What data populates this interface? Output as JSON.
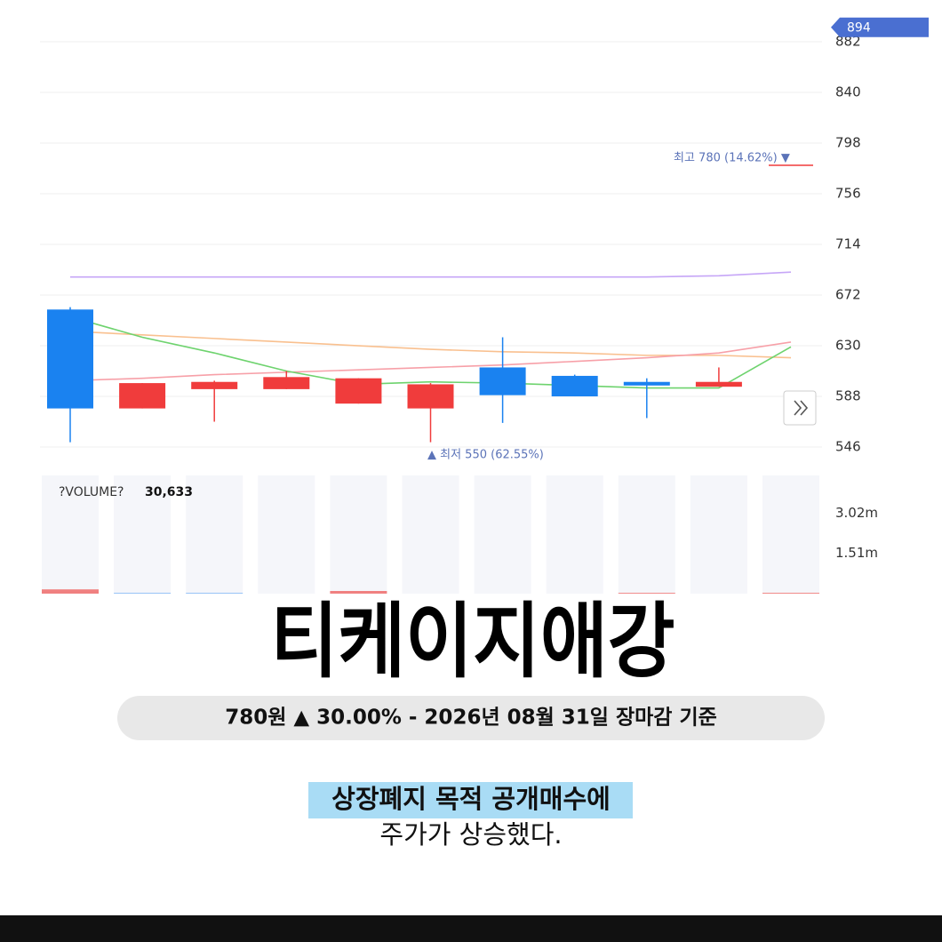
{
  "chart_data": {
    "type": "candlestick",
    "categories": [
      null,
      null,
      null,
      null,
      null,
      null,
      null,
      null,
      null,
      null,
      null
    ],
    "open": [
      660,
      578,
      594,
      594,
      582,
      578,
      612,
      605,
      600,
      596,
      null
    ],
    "high": [
      662,
      599,
      601,
      609,
      603,
      599,
      637,
      606,
      603,
      612,
      null
    ],
    "low": [
      550,
      578,
      567,
      594,
      582,
      550,
      566,
      588,
      570,
      596,
      null
    ],
    "close": [
      578,
      599,
      600,
      604,
      603,
      598,
      589,
      588,
      597,
      600,
      null
    ],
    "up_color": "#f03c3c",
    "down_color": "#1a82f0",
    "series": [
      {
        "color": "#c6a6f7",
        "values": [
          687,
          687,
          687,
          687,
          687,
          687,
          687,
          687,
          687,
          688,
          691
        ]
      },
      {
        "color": "#f9c08f",
        "values": [
          642,
          639,
          636,
          633,
          630,
          627,
          625,
          624,
          622,
          622,
          620
        ]
      },
      {
        "color": "#f7a0a8",
        "values": [
          601,
          603,
          606,
          608,
          610,
          612,
          614,
          617,
          620,
          624,
          633
        ]
      },
      {
        "color": "#6ed36e",
        "values": [
          654,
          637,
          624,
          609,
          598,
          600,
          599,
          597,
          595,
          595,
          629
        ]
      }
    ],
    "ylim": [
      536,
      894
    ],
    "yticks": [
      546,
      588,
      630,
      672,
      714,
      756,
      798,
      840,
      882
    ],
    "grid": true,
    "current_price": 894,
    "high_annotation": "최고 780 (14.62%) ▼",
    "low_annotation": "▲ 최저 550 (62.55%)",
    "volume": {
      "title": "?VOLUME?",
      "current": "30,633",
      "values": [
        160000,
        30000,
        30000,
        0,
        100000,
        0,
        0,
        0,
        30000,
        0,
        30633
      ],
      "colors": [
        "#f08080",
        "#8fbff5",
        "#8fbff5",
        "#8fbff5",
        "#f08080",
        "#8fbff5",
        "#8fbff5",
        "#8fbff5",
        "#f08080",
        "#8fbff5",
        "#f08080"
      ],
      "ylim": [
        0,
        4430000
      ],
      "yticks": [
        {
          "value": 1510000,
          "label": "1.51m"
        },
        {
          "value": 3020000,
          "label": "3.02m"
        }
      ]
    }
  },
  "title": "티케이지애강",
  "price_summary": "780원 ▲ 30.00% - 2026년 08월 31일 장마감 기준",
  "caption": [
    "상장폐지 목적 공개매수에",
    "주가가 상승했다."
  ]
}
